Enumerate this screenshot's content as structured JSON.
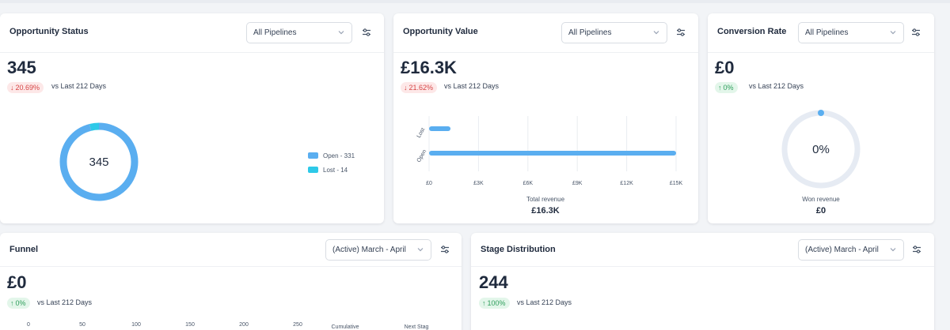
{
  "opportunity_status": {
    "title": "Opportunity Status",
    "pipeline_select": "All Pipelines",
    "total": "345",
    "change": "20.69%",
    "change_direction": "down",
    "vs_label": "vs Last 212 Days",
    "donut_center": "345",
    "legend": [
      {
        "label": "Open - 331",
        "color": "#5aaef0"
      },
      {
        "label": "Lost - 14",
        "color": "#2ec9e8"
      }
    ]
  },
  "opportunity_value": {
    "title": "Opportunity Value",
    "pipeline_select": "All Pipelines",
    "total": "£16.3K",
    "change": "21.62%",
    "change_direction": "down",
    "vs_label": "vs Last 212 Days",
    "total_revenue_label": "Total revenue",
    "total_revenue_value": "£16.3K"
  },
  "conversion_rate": {
    "title": "Conversion Rate",
    "pipeline_select": "All Pipelines",
    "total": "£0",
    "change": "0%",
    "change_direction": "up",
    "vs_label": "vs Last 212 Days",
    "gauge_center": "0%",
    "won_revenue_label": "Won revenue",
    "won_revenue_value": "£0",
    "rate": 0
  },
  "funnel": {
    "title": "Funnel",
    "date_select": "(Active) March - April",
    "total": "£0",
    "change": "0%",
    "change_direction": "up",
    "vs_label": "vs Last 212 Days",
    "axis_ticks": [
      "0",
      "50",
      "100",
      "150",
      "200",
      "250"
    ],
    "columns": [
      "Cumulative",
      "Next Stag"
    ]
  },
  "stage_distribution": {
    "title": "Stage Distribution",
    "date_select": "(Active) March - April",
    "total": "244",
    "change": "100%",
    "change_direction": "up",
    "vs_label": "vs Last 212 Days"
  },
  "colors": {
    "open": "#5aaef0",
    "lost": "#2ec9e8",
    "track": "#e6ebf3",
    "down_badge_bg": "#fde8e8",
    "up_badge_bg": "#e3f6ea"
  },
  "icons": {
    "filter": "sliders-icon",
    "dropdown": "chevron-down-icon",
    "down_arrow": "arrow-down-icon",
    "up_arrow": "arrow-up-icon"
  },
  "chart_data": [
    {
      "type": "pie",
      "variant": "donut",
      "categories": [
        "Open",
        "Lost"
      ],
      "values": [
        331,
        14
      ],
      "legend_position": "right"
    },
    {
      "type": "bar",
      "orientation": "horizontal",
      "categories": [
        "Lost",
        "Open"
      ],
      "values": [
        1300,
        15000
      ],
      "xlim": [
        0,
        15000
      ],
      "x_ticks": [
        "£0",
        "£3K",
        "£6K",
        "£9K",
        "£12K",
        "£15K"
      ],
      "grid": true
    }
  ]
}
